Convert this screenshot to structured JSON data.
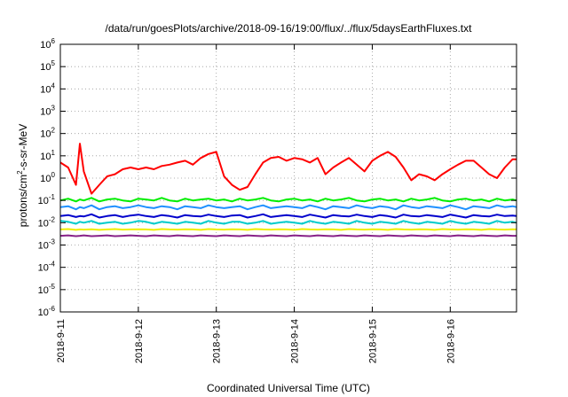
{
  "chart_data": {
    "type": "line",
    "title": "/data/run/goesPlots/archive/2018-09-16/19:00/flux/../flux/5daysEarthFluxes.txt",
    "xlabel": "Coordinated Universal Time (UTC)",
    "ylabel": {
      "pre": "protons/cm",
      "sup": "2",
      "post": "-s-sr-MeV"
    },
    "xlim": [
      0,
      5.85
    ],
    "xtick_labels": [
      "2018-9-11",
      "2018-9-12",
      "2018-9-13",
      "2018-9-14",
      "2018-9-15",
      "2018-9-16"
    ],
    "yscale": "log",
    "ylim": [
      1e-06,
      1000000.0
    ],
    "ytick_exponents": [
      -6,
      -5,
      -4,
      -3,
      -2,
      -1,
      0,
      1,
      2,
      3,
      4,
      5,
      6
    ],
    "ytick_base": "10",
    "grid": true,
    "x": [
      0.0,
      0.1,
      0.2,
      0.25,
      0.3,
      0.4,
      0.5,
      0.6,
      0.7,
      0.8,
      0.9,
      1.0,
      1.1,
      1.2,
      1.3,
      1.4,
      1.5,
      1.6,
      1.7,
      1.8,
      1.9,
      2.0,
      2.1,
      2.2,
      2.3,
      2.4,
      2.5,
      2.6,
      2.7,
      2.8,
      2.9,
      3.0,
      3.1,
      3.2,
      3.3,
      3.4,
      3.5,
      3.6,
      3.7,
      3.8,
      3.9,
      4.0,
      4.1,
      4.2,
      4.3,
      4.4,
      4.5,
      4.6,
      4.7,
      4.8,
      4.9,
      5.0,
      5.1,
      5.2,
      5.3,
      5.4,
      5.5,
      5.6,
      5.7,
      5.8,
      5.85
    ],
    "series": [
      {
        "color": "#ff0000",
        "values": [
          5,
          3,
          0.5,
          35,
          2,
          0.2,
          0.5,
          1.2,
          1.5,
          2.5,
          3,
          2.5,
          3,
          2.5,
          3.5,
          4,
          5,
          6,
          4,
          8,
          12,
          15,
          1.2,
          0.5,
          0.3,
          0.4,
          1.5,
          5,
          8,
          9,
          6,
          8,
          7,
          5,
          8,
          1.5,
          3,
          5,
          8,
          4,
          2,
          6,
          10,
          15,
          9,
          3,
          0.8,
          1.5,
          1.2,
          0.8,
          1.5,
          2.5,
          4,
          6,
          6,
          3,
          1.5,
          1,
          3,
          7,
          7
        ]
      },
      {
        "color": "#00ee00",
        "values": [
          0.1,
          0.12,
          0.09,
          0.11,
          0.1,
          0.13,
          0.09,
          0.11,
          0.12,
          0.1,
          0.09,
          0.12,
          0.11,
          0.1,
          0.13,
          0.1,
          0.09,
          0.12,
          0.1,
          0.11,
          0.12,
          0.1,
          0.11,
          0.09,
          0.12,
          0.1,
          0.11,
          0.13,
          0.1,
          0.09,
          0.11,
          0.12,
          0.1,
          0.11,
          0.09,
          0.12,
          0.1,
          0.11,
          0.13,
          0.1,
          0.09,
          0.11,
          0.12,
          0.1,
          0.11,
          0.09,
          0.12,
          0.1,
          0.11,
          0.13,
          0.1,
          0.09,
          0.11,
          0.12,
          0.1,
          0.11,
          0.09,
          0.12,
          0.1,
          0.11,
          0.1
        ]
      },
      {
        "color": "#1e90ff",
        "values": [
          0.05,
          0.055,
          0.04,
          0.05,
          0.045,
          0.06,
          0.04,
          0.05,
          0.055,
          0.045,
          0.05,
          0.06,
          0.05,
          0.045,
          0.055,
          0.05,
          0.04,
          0.055,
          0.05,
          0.045,
          0.06,
          0.05,
          0.045,
          0.05,
          0.055,
          0.04,
          0.05,
          0.06,
          0.045,
          0.05,
          0.055,
          0.05,
          0.045,
          0.06,
          0.05,
          0.04,
          0.055,
          0.05,
          0.045,
          0.06,
          0.05,
          0.045,
          0.055,
          0.05,
          0.04,
          0.06,
          0.05,
          0.045,
          0.055,
          0.05,
          0.045,
          0.06,
          0.05,
          0.04,
          0.055,
          0.05,
          0.045,
          0.06,
          0.05,
          0.055,
          0.05
        ]
      },
      {
        "color": "#0000cc",
        "values": [
          0.02,
          0.022,
          0.018,
          0.02,
          0.019,
          0.024,
          0.017,
          0.02,
          0.022,
          0.018,
          0.021,
          0.023,
          0.02,
          0.018,
          0.022,
          0.02,
          0.017,
          0.022,
          0.02,
          0.019,
          0.023,
          0.02,
          0.018,
          0.021,
          0.022,
          0.017,
          0.02,
          0.024,
          0.018,
          0.02,
          0.022,
          0.02,
          0.018,
          0.023,
          0.02,
          0.017,
          0.022,
          0.02,
          0.019,
          0.023,
          0.02,
          0.018,
          0.022,
          0.02,
          0.017,
          0.023,
          0.02,
          0.019,
          0.022,
          0.02,
          0.018,
          0.023,
          0.02,
          0.017,
          0.022,
          0.02,
          0.019,
          0.023,
          0.02,
          0.021,
          0.02
        ]
      },
      {
        "color": "#00cccc",
        "values": [
          0.012,
          0.011,
          0.009,
          0.011,
          0.01,
          0.012,
          0.009,
          0.01,
          0.011,
          0.009,
          0.01,
          0.012,
          0.011,
          0.009,
          0.011,
          0.01,
          0.009,
          0.011,
          0.01,
          0.009,
          0.012,
          0.01,
          0.009,
          0.011,
          0.011,
          0.009,
          0.01,
          0.012,
          0.009,
          0.01,
          0.011,
          0.01,
          0.009,
          0.012,
          0.01,
          0.009,
          0.011,
          0.01,
          0.009,
          0.012,
          0.01,
          0.009,
          0.011,
          0.01,
          0.009,
          0.012,
          0.01,
          0.009,
          0.011,
          0.01,
          0.009,
          0.012,
          0.01,
          0.009,
          0.011,
          0.01,
          0.009,
          0.012,
          0.01,
          0.011,
          0.01
        ]
      },
      {
        "color": "#eeee00",
        "values": [
          0.005,
          0.0052,
          0.0048,
          0.005,
          0.0049,
          0.0051,
          0.0048,
          0.005,
          0.0052,
          0.0049,
          0.005,
          0.0051,
          0.005,
          0.0048,
          0.0052,
          0.005,
          0.0049,
          0.0051,
          0.005,
          0.0048,
          0.0052,
          0.005,
          0.0049,
          0.0051,
          0.005,
          0.0048,
          0.0052,
          0.005,
          0.0049,
          0.0051,
          0.005,
          0.0048,
          0.0052,
          0.005,
          0.0049,
          0.0051,
          0.005,
          0.0048,
          0.0052,
          0.005,
          0.0049,
          0.0051,
          0.005,
          0.0048,
          0.0052,
          0.005,
          0.0049,
          0.0051,
          0.005,
          0.0048,
          0.0052,
          0.005,
          0.0049,
          0.0051,
          0.005,
          0.0048,
          0.0052,
          0.005,
          0.0049,
          0.0051,
          0.005
        ]
      },
      {
        "color": "#882288",
        "values": [
          0.0026,
          0.0027,
          0.0025,
          0.0026,
          0.0027,
          0.0025,
          0.0026,
          0.0027,
          0.0025,
          0.0026,
          0.0027,
          0.0026,
          0.0025,
          0.0027,
          0.0026,
          0.0025,
          0.0027,
          0.0026,
          0.0025,
          0.0027,
          0.0026,
          0.0025,
          0.0027,
          0.0026,
          0.0025,
          0.0027,
          0.0026,
          0.0025,
          0.0027,
          0.0026,
          0.0025,
          0.0027,
          0.0026,
          0.0025,
          0.0027,
          0.0026,
          0.0025,
          0.0027,
          0.0026,
          0.0025,
          0.0027,
          0.0026,
          0.0025,
          0.0027,
          0.0026,
          0.0025,
          0.0027,
          0.0026,
          0.0025,
          0.0027,
          0.0026,
          0.0025,
          0.0027,
          0.0026,
          0.0025,
          0.0027,
          0.0026,
          0.0025,
          0.0027,
          0.0026,
          0.0026
        ]
      }
    ]
  }
}
